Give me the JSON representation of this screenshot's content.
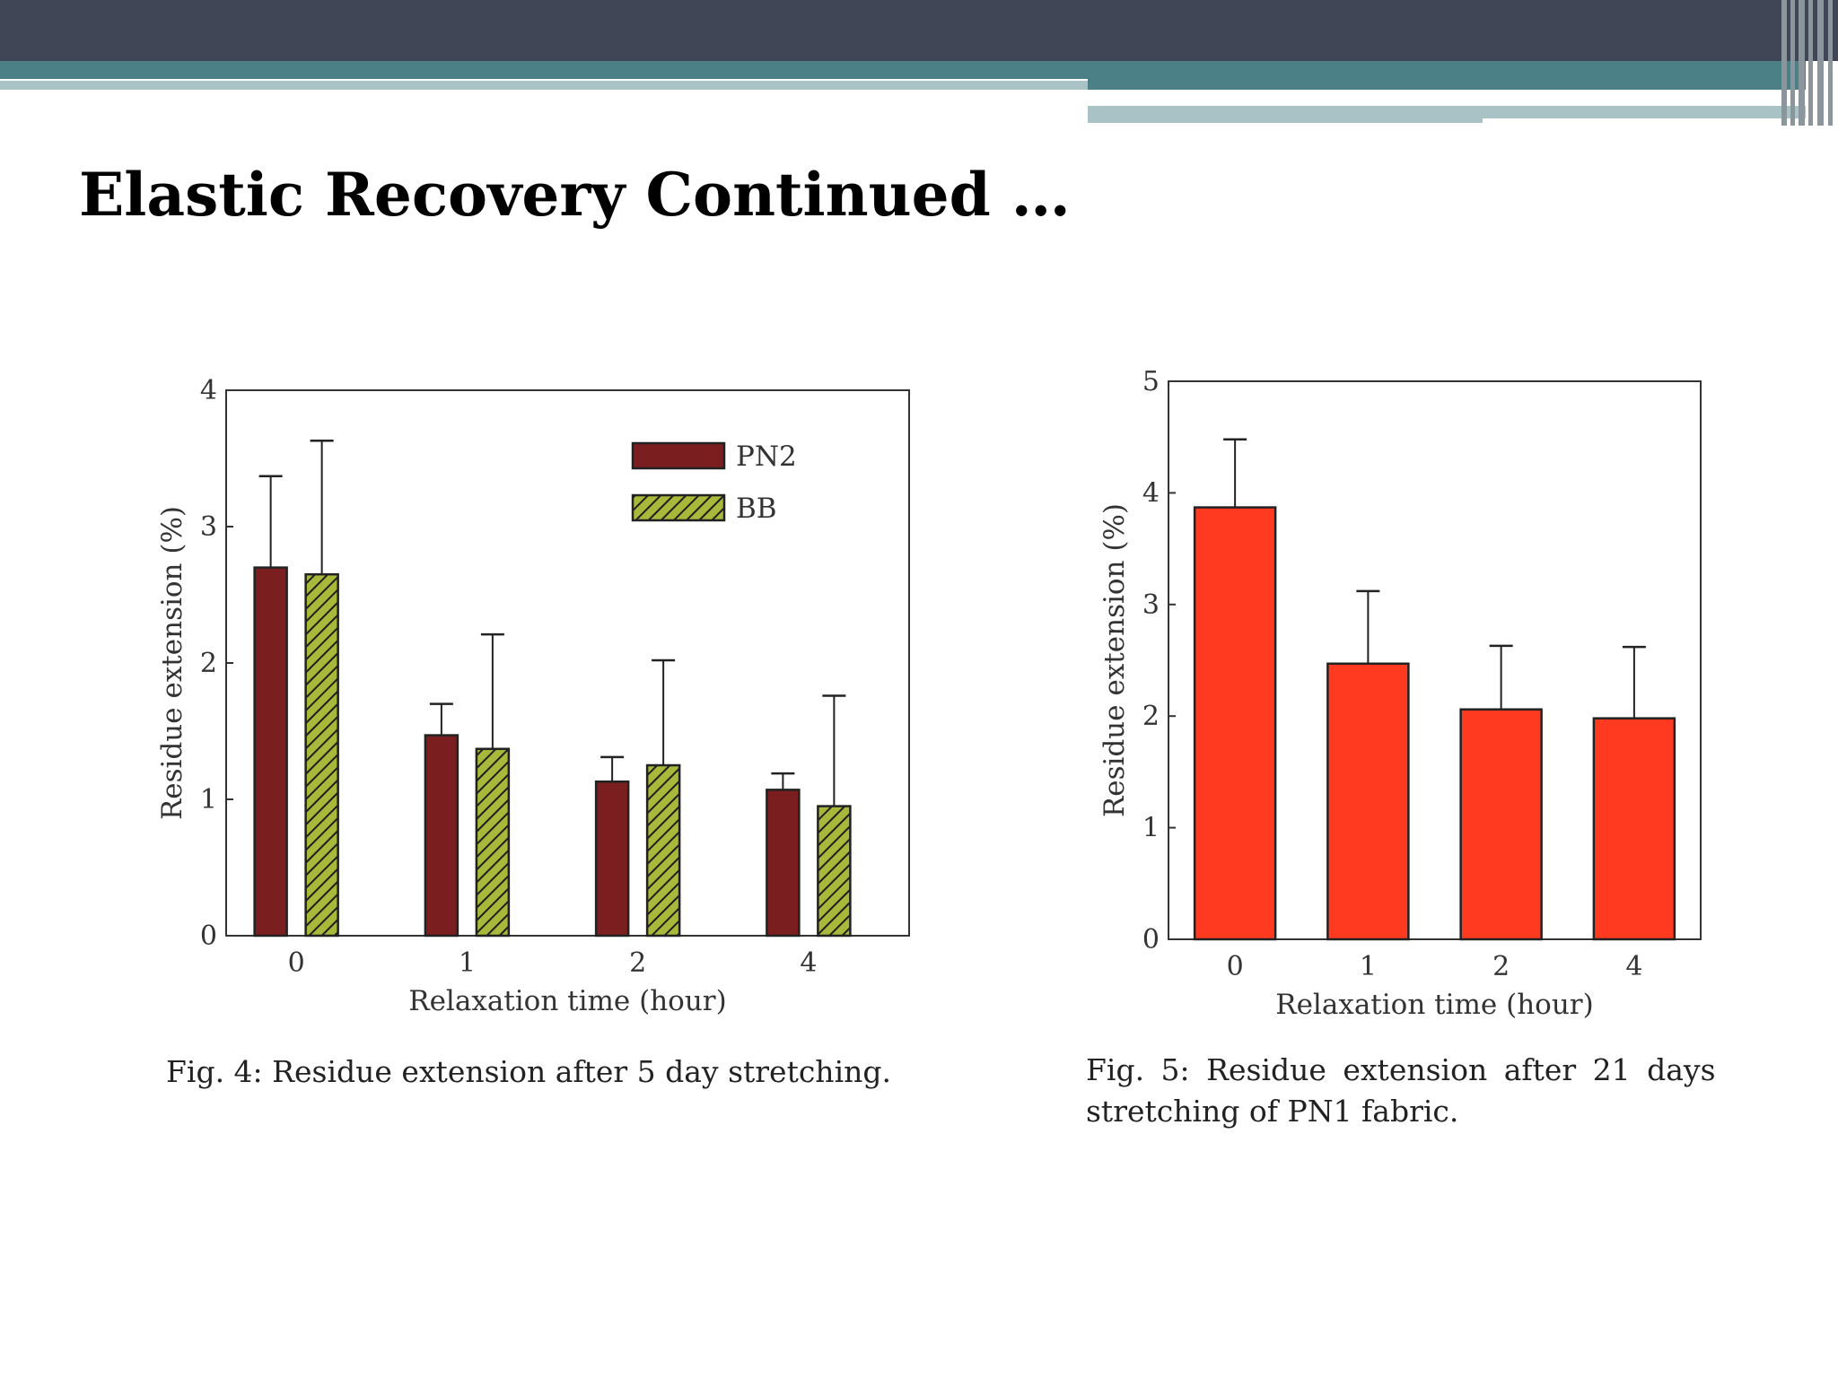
{
  "slide": {
    "title": "Elastic Recovery Continued …"
  },
  "chart_data": [
    {
      "type": "bar",
      "categories": [
        "0",
        "1",
        "2",
        "4"
      ],
      "series": [
        {
          "name": "PN2",
          "values": [
            2.7,
            1.47,
            1.13,
            1.07
          ],
          "error": [
            0.67,
            0.23,
            0.18,
            0.12
          ],
          "color": "#7a1e1f"
        },
        {
          "name": "BB",
          "values": [
            2.65,
            1.37,
            1.25,
            0.95
          ],
          "error": [
            0.98,
            0.84,
            0.77,
            0.81
          ],
          "color": "#a8b83a",
          "hatched": true
        }
      ],
      "xlabel": "Relaxation time (hour)",
      "ylabel": "Residue extension (%)",
      "ylim": [
        0,
        4
      ],
      "yticks": [
        "0",
        "1",
        "2",
        "3",
        "4"
      ],
      "legend": "top-right",
      "caption": "Fig. 4: Residue extension after 5 day stretching."
    },
    {
      "type": "bar",
      "categories": [
        "0",
        "1",
        "2",
        "4"
      ],
      "series": [
        {
          "name": "PN1",
          "values": [
            3.87,
            2.47,
            2.06,
            1.98
          ],
          "error": [
            0.61,
            0.65,
            0.57,
            0.64
          ],
          "color": "#ff3a20"
        }
      ],
      "xlabel": "Relaxation time (hour)",
      "ylabel": "Residue extension (%)",
      "ylim": [
        0,
        5
      ],
      "yticks": [
        "0",
        "1",
        "2",
        "3",
        "4",
        "5"
      ],
      "caption_line1": "Fig. 5: Residue extension after 21 days",
      "caption_line2": "stretching of PN1 fabric."
    }
  ]
}
